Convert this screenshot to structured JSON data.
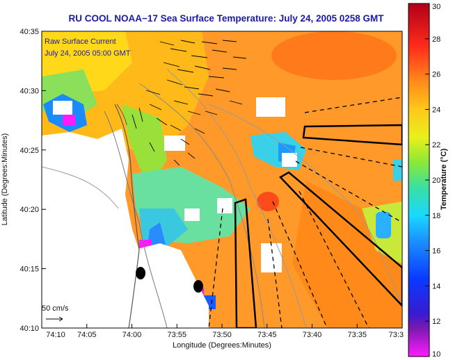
{
  "title": "RU COOL  NOAA−17  Sea Surface Temperature:  July 24, 2005 0258 GMT",
  "overlay": {
    "line1": "Raw Surface Current",
    "line2": "July 24, 2005 05:00 GMT",
    "scale_label": "50 cm/s"
  },
  "axes": {
    "x_label": "Longitude (Degrees:Minutes)",
    "y_label": "Latitude (Degrees:Minutes)",
    "x_ticks": [
      "74:10",
      "74:05",
      "74:00",
      "73:55",
      "73:50",
      "73:45",
      "73:40",
      "73:35",
      "73:3"
    ],
    "y_ticks": [
      "40:35",
      "40:30",
      "40:25",
      "40:20",
      "40:15",
      "40:10"
    ]
  },
  "colorbar": {
    "title": "Temperature (°C)",
    "ticks": [
      "30",
      "28",
      "26",
      "24",
      "22",
      "20",
      "18",
      "16",
      "14",
      "12",
      "10"
    ],
    "min": 10,
    "max": 30
  },
  "colors": {
    "title": "#1a1aa8",
    "land": "#ffffff",
    "sea_warm": "#ff9a2a",
    "sea_cool": "#3ac8e0",
    "vector": "#000000"
  }
}
